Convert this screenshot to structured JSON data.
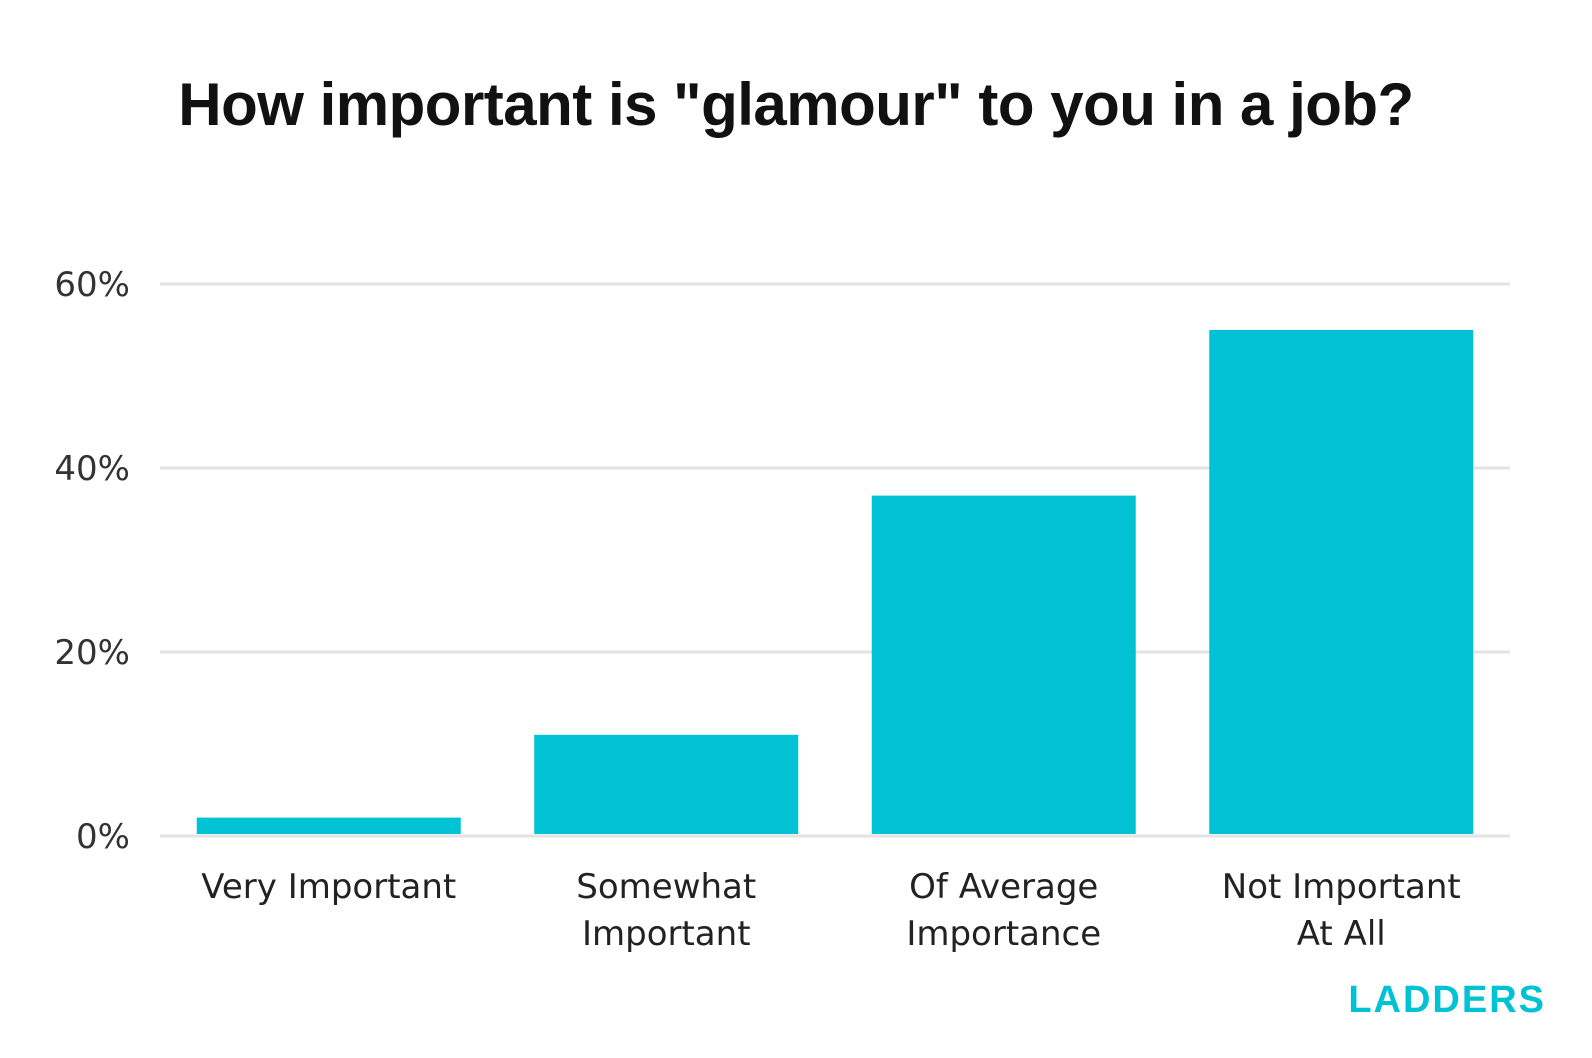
{
  "chart_data": {
    "type": "bar",
    "title": "How important is \"glamour\" to you in a job?",
    "xlabel": "",
    "ylabel": "",
    "categories": [
      [
        "Very Important"
      ],
      [
        "Somewhat",
        "Important"
      ],
      [
        "Of Average",
        "Importance"
      ],
      [
        "Not Important",
        "At All"
      ]
    ],
    "values": [
      2,
      11,
      37,
      55
    ],
    "ylim": [
      0,
      60
    ],
    "yticks": [
      0,
      20,
      40,
      60
    ],
    "ytick_labels": [
      "0%",
      "20%",
      "40%",
      "60%"
    ],
    "grid": true,
    "legend": "none"
  },
  "colors": {
    "bar": "#00C2D5",
    "grid": "#e3e3e3",
    "brand": "#00C2D5"
  },
  "brand": {
    "name": "LADDERS"
  }
}
